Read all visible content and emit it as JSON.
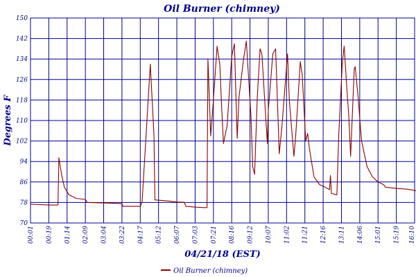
{
  "chart_data": {
    "type": "line",
    "title": "Oil Burner (chimney)",
    "xlabel": "04/21/18 (EST)",
    "ylabel": "Degrees F",
    "ylim": [
      70,
      150
    ],
    "yticks": [
      70,
      78,
      86,
      94,
      102,
      110,
      118,
      126,
      134,
      142,
      150
    ],
    "xlim": [
      "00:01",
      "16:10"
    ],
    "xticks": [
      "00:01",
      "00:19",
      "01:14",
      "02:09",
      "03:04",
      "03:22",
      "04:17",
      "05:12",
      "06:07",
      "07:03",
      "07:21",
      "08:16",
      "09:12",
      "10:07",
      "11:02",
      "11:21",
      "12:16",
      "13:11",
      "14:06",
      "15:01",
      "15:19",
      "16:10"
    ],
    "grid": true,
    "legend": "bottom-left",
    "series": [
      {
        "name": "Oil Burner (chimney)",
        "color": "#8b0000",
        "points": [
          [
            0.0,
            77.3
          ],
          [
            1.0,
            77.0
          ],
          [
            1.5,
            77.0
          ],
          [
            1.55,
            95.5
          ],
          [
            1.7,
            89
          ],
          [
            1.85,
            84
          ],
          [
            2.1,
            81
          ],
          [
            2.5,
            79.6
          ],
          [
            3.0,
            79.2
          ],
          [
            3.1,
            78.0
          ],
          [
            4.0,
            77.8
          ],
          [
            5.0,
            77.6
          ],
          [
            5.05,
            76.5
          ],
          [
            6.0,
            76.5
          ],
          [
            6.1,
            78.0
          ],
          [
            6.55,
            132
          ],
          [
            6.75,
            104
          ],
          [
            6.8,
            79.0
          ],
          [
            7.5,
            78.6
          ],
          [
            8.0,
            78.2
          ],
          [
            8.4,
            78.1
          ],
          [
            8.5,
            76.5
          ],
          [
            9.0,
            76.2
          ],
          [
            9.5,
            76.0
          ],
          [
            9.65,
            76.0
          ],
          [
            9.7,
            134
          ],
          [
            9.85,
            104
          ],
          [
            10.0,
            118
          ],
          [
            10.2,
            139
          ],
          [
            10.35,
            132
          ],
          [
            10.45,
            115
          ],
          [
            10.55,
            101
          ],
          [
            10.75,
            108
          ],
          [
            11.0,
            135
          ],
          [
            11.15,
            140
          ],
          [
            11.3,
            103
          ],
          [
            11.4,
            119
          ],
          [
            11.65,
            134
          ],
          [
            11.8,
            141
          ],
          [
            12.05,
            112
          ],
          [
            12.15,
            92
          ],
          [
            12.25,
            89
          ],
          [
            12.4,
            119
          ],
          [
            12.55,
            138
          ],
          [
            12.65,
            136
          ],
          [
            12.95,
            101
          ],
          [
            13.0,
            114
          ],
          [
            13.25,
            136
          ],
          [
            13.4,
            138
          ],
          [
            13.6,
            97
          ],
          [
            13.75,
            108
          ],
          [
            14.05,
            136
          ],
          [
            14.15,
            118
          ],
          [
            14.4,
            96
          ],
          [
            14.5,
            104
          ],
          [
            14.75,
            133
          ],
          [
            14.85,
            128
          ],
          [
            15.05,
            102
          ],
          [
            15.15,
            105
          ],
          [
            15.25,
            99
          ],
          [
            15.5,
            88
          ],
          [
            15.8,
            85
          ],
          [
            16.1,
            84
          ],
          [
            16.35,
            83
          ],
          [
            16.4,
            88.5
          ],
          [
            16.45,
            81.5
          ],
          [
            16.75,
            81.0
          ],
          [
            16.85,
            104
          ],
          [
            17.05,
            133
          ],
          [
            17.15,
            139
          ],
          [
            17.3,
            122
          ],
          [
            17.4,
            112
          ],
          [
            17.5,
            96
          ],
          [
            17.7,
            130
          ],
          [
            17.75,
            131
          ],
          [
            17.9,
            120
          ],
          [
            18.1,
            102
          ],
          [
            18.4,
            92
          ],
          [
            18.7,
            88
          ],
          [
            19.0,
            86
          ],
          [
            19.3,
            85
          ],
          [
            19.4,
            84
          ],
          [
            20.0,
            83.5
          ],
          [
            20.6,
            83.2
          ],
          [
            21.2,
            82.5
          ],
          [
            22.2,
            82.0
          ],
          [
            22.8,
            81.5
          ],
          [
            22.9,
            79.0
          ],
          [
            23.1,
            77.6
          ],
          [
            24.0,
            77.5
          ],
          [
            24.2,
            78.0
          ],
          [
            24.4,
            77.0
          ],
          [
            25.0,
            76.8
          ]
        ]
      }
    ]
  }
}
